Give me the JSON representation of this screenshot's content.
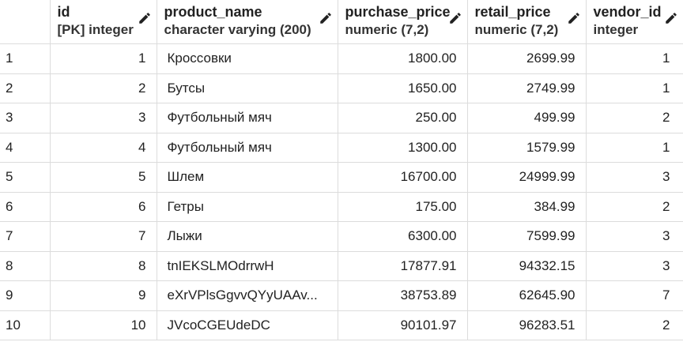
{
  "columns": [
    {
      "name": "",
      "type": ""
    },
    {
      "name": "id",
      "type": "[PK] integer"
    },
    {
      "name": "product_name",
      "type": "character varying (200)"
    },
    {
      "name": "purchase_price",
      "type": "numeric (7,2)"
    },
    {
      "name": "retail_price",
      "type": "numeric (7,2)"
    },
    {
      "name": "vendor_id",
      "type": "integer"
    }
  ],
  "rows": [
    {
      "row": "1",
      "id": "1",
      "product_name": "Кроссовки",
      "purchase_price": "1800.00",
      "retail_price": "2699.99",
      "vendor_id": "1"
    },
    {
      "row": "2",
      "id": "2",
      "product_name": "Бутсы",
      "purchase_price": "1650.00",
      "retail_price": "2749.99",
      "vendor_id": "1"
    },
    {
      "row": "3",
      "id": "3",
      "product_name": "Футбольный мяч",
      "purchase_price": "250.00",
      "retail_price": "499.99",
      "vendor_id": "2"
    },
    {
      "row": "4",
      "id": "4",
      "product_name": "Футбольный мяч",
      "purchase_price": "1300.00",
      "retail_price": "1579.99",
      "vendor_id": "1"
    },
    {
      "row": "5",
      "id": "5",
      "product_name": "Шлем",
      "purchase_price": "16700.00",
      "retail_price": "24999.99",
      "vendor_id": "3"
    },
    {
      "row": "6",
      "id": "6",
      "product_name": "Гетры",
      "purchase_price": "175.00",
      "retail_price": "384.99",
      "vendor_id": "2"
    },
    {
      "row": "7",
      "id": "7",
      "product_name": "Лыжи",
      "purchase_price": "6300.00",
      "retail_price": "7599.99",
      "vendor_id": "3"
    },
    {
      "row": "8",
      "id": "8",
      "product_name": "tnIEKSLMOdrrwH",
      "purchase_price": "17877.91",
      "retail_price": "94332.15",
      "vendor_id": "3"
    },
    {
      "row": "9",
      "id": "9",
      "product_name": "eXrVPlsGgvvQYyUAAv...",
      "purchase_price": "38753.89",
      "retail_price": "62645.90",
      "vendor_id": "7"
    },
    {
      "row": "10",
      "id": "10",
      "product_name": "JVcoCGEUdeDC",
      "purchase_price": "90101.97",
      "retail_price": "96283.51",
      "vendor_id": "2"
    }
  ],
  "icons": {
    "edit": "pencil-icon"
  }
}
